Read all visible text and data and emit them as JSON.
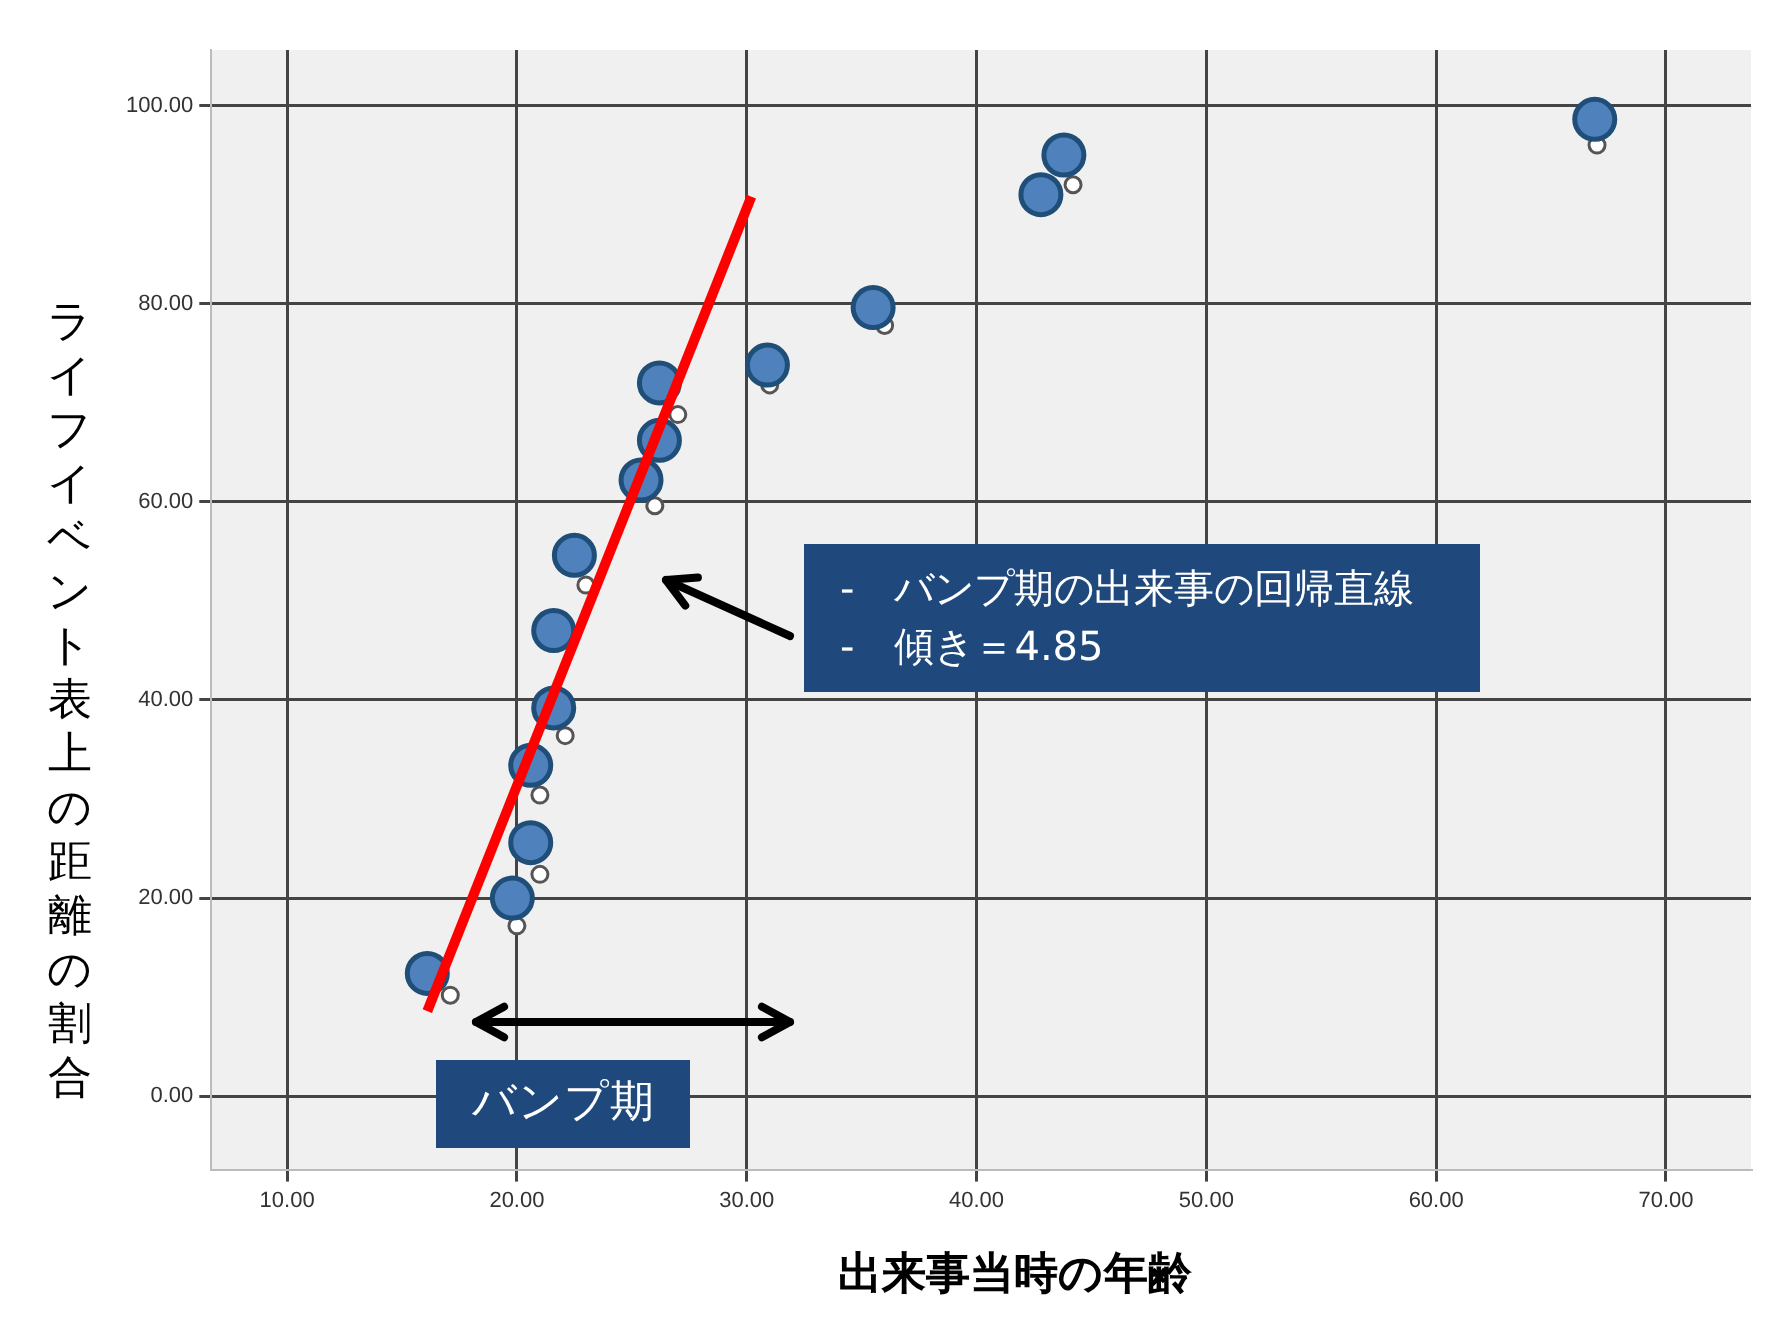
{
  "chart_data": {
    "type": "scatter",
    "xlabel": "出来事当時の年齢",
    "ylabel": "ライフイベント表上の距離の割合",
    "series": [
      {
        "color": "#4f81bd",
        "x": [
          16.1,
          19.8,
          20.6,
          20.6,
          21.6,
          21.6,
          22.5,
          25.4,
          26.2,
          26.2,
          30.9,
          35.5,
          42.8,
          43.8,
          66.9
        ],
        "values": [
          12.4,
          20.0,
          25.6,
          33.4,
          39.2,
          47.0,
          54.6,
          62.2,
          66.2,
          72.0,
          73.8,
          79.6,
          91.0,
          95.0,
          98.6
        ]
      },
      {
        "color": "#ffffff",
        "x": [
          17.1,
          20.0,
          21.0,
          21.0,
          22.1,
          23.0,
          26.0,
          27.0,
          31.0,
          36.0,
          44.2,
          67.0
        ],
        "values": [
          10.2,
          17.2,
          22.4,
          30.4,
          36.4,
          51.6,
          59.6,
          68.8,
          71.8,
          77.8,
          92.0,
          96.0
        ]
      },
      {
        "type": "line",
        "color": "#ff0000",
        "marker": "none",
        "x": [
          16.1,
          30.2
        ],
        "values": [
          8.6,
          90.8
        ]
      }
    ],
    "xlim": [
      6.7,
      73.7
    ],
    "ylim": [
      -7.4,
      105.6
    ],
    "xticks": [
      {
        "value": 10,
        "label": "10.00"
      },
      {
        "value": 20,
        "label": "20.00"
      },
      {
        "value": 30,
        "label": "30.00"
      },
      {
        "value": 40,
        "label": "40.00"
      },
      {
        "value": 50,
        "label": "50.00"
      },
      {
        "value": 60,
        "label": "60.00"
      },
      {
        "value": 70,
        "label": "70.00"
      }
    ],
    "yticks": [
      {
        "value": 0,
        "label": "0.00"
      },
      {
        "value": 20,
        "label": "20.00"
      },
      {
        "value": 40,
        "label": "40.00"
      },
      {
        "value": 60,
        "label": "60.00"
      },
      {
        "value": 80,
        "label": "80.00"
      },
      {
        "value": 100,
        "label": "100.00"
      }
    ],
    "grid": true,
    "legend": false,
    "marker": "circle",
    "annotations": [
      "-　バンプ期の出来事の回帰直線\n-　傾き＝4.85",
      "バンプ期"
    ]
  }
}
